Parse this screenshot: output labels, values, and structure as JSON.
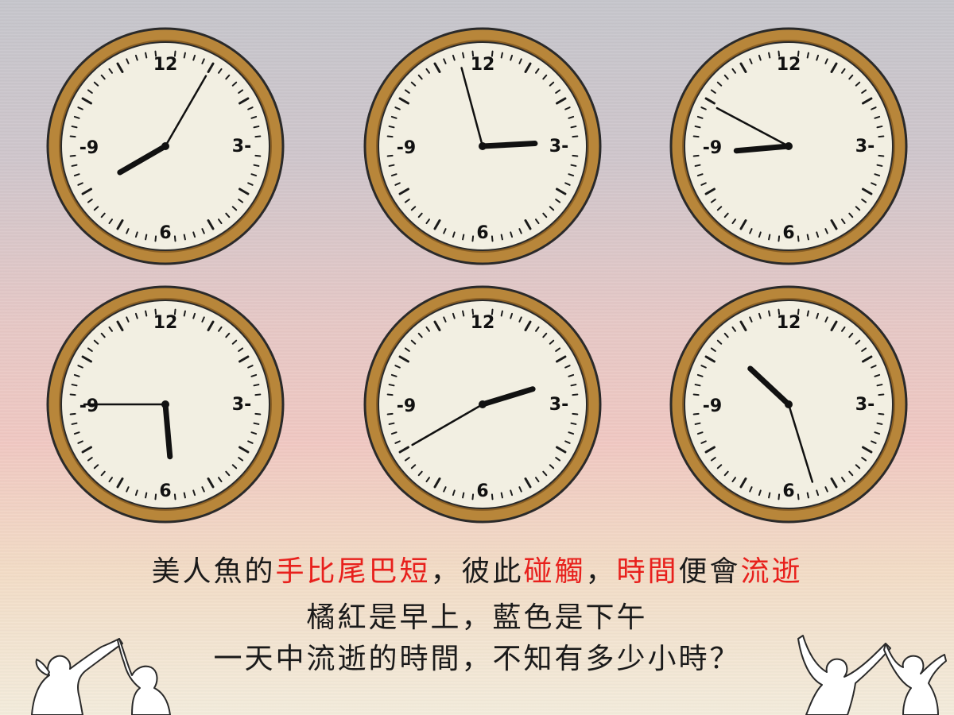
{
  "caption": {
    "line1": [
      {
        "text": "美人魚的",
        "color": "#1a1a1a"
      },
      {
        "text": "手比尾巴短",
        "color": "#e8201c"
      },
      {
        "text": "，彼此",
        "color": "#1a1a1a"
      },
      {
        "text": "碰觸",
        "color": "#e8201c"
      },
      {
        "text": "，",
        "color": "#1a1a1a"
      },
      {
        "text": "時間",
        "color": "#e8201c"
      },
      {
        "text": "便會",
        "color": "#1a1a1a"
      },
      {
        "text": "流逝",
        "color": "#e8201c"
      }
    ],
    "line2": "橘紅是早上，藍色是下午",
    "line3": "一天中流逝的時間，不知有多少小時？"
  },
  "clock_face": {
    "numerals": {
      "top": "12",
      "right": "3-",
      "bottom": "6",
      "left": "-9"
    },
    "rim_color": "#b8863a",
    "face_color": "#f2efe2"
  },
  "clocks": [
    {
      "name": "clock-1",
      "hour_angle_deg": 240,
      "minute_angle_deg": 30
    },
    {
      "name": "clock-2",
      "hour_angle_deg": 87,
      "minute_angle_deg": 345
    },
    {
      "name": "clock-3",
      "hour_angle_deg": 265,
      "minute_angle_deg": 298
    },
    {
      "name": "clock-4",
      "hour_angle_deg": 175,
      "minute_angle_deg": 270
    },
    {
      "name": "clock-5",
      "hour_angle_deg": 73,
      "minute_angle_deg": 240
    },
    {
      "name": "clock-6",
      "hour_angle_deg": 313,
      "minute_angle_deg": 163
    }
  ]
}
